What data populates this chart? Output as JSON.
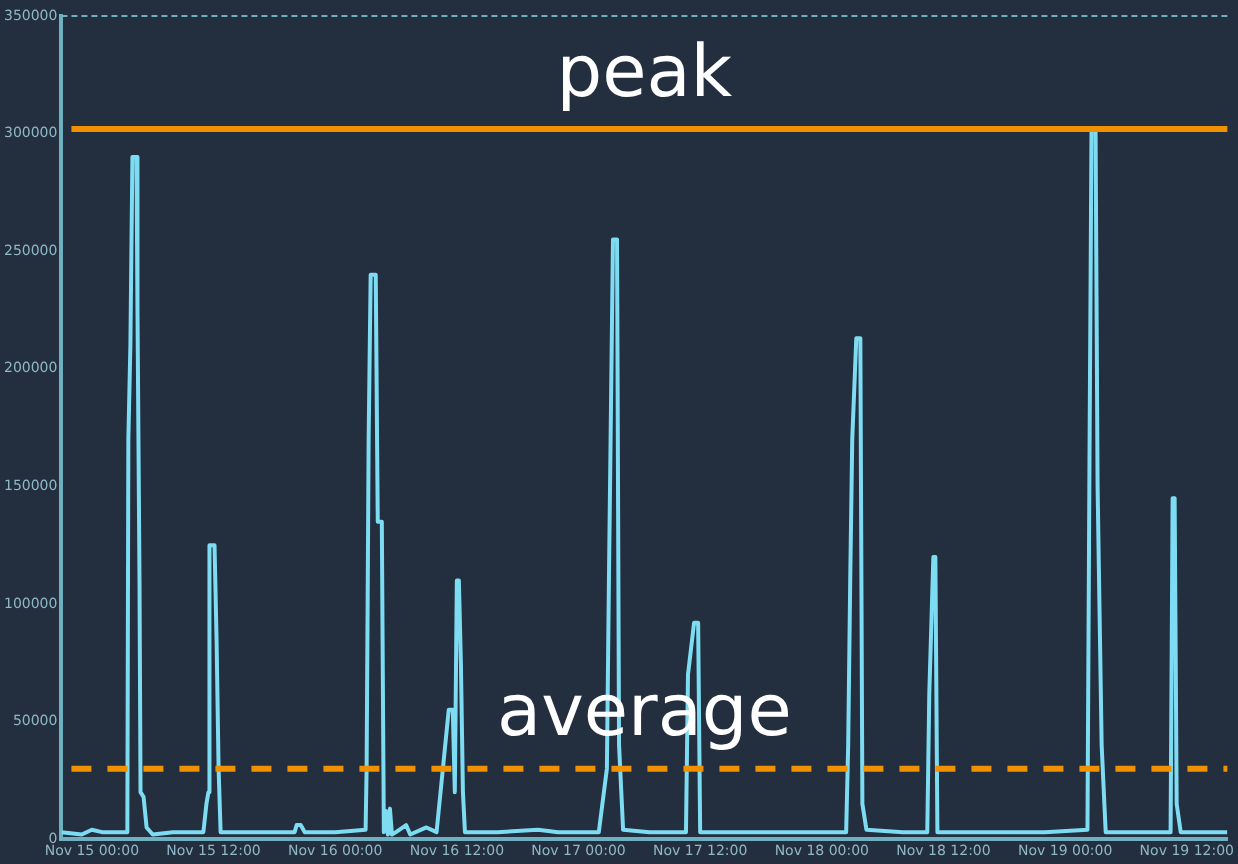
{
  "chart_data": {
    "type": "line",
    "xlim": [
      "--11-14T21:00",
      "--11-19T16:00"
    ],
    "ylim": [
      0,
      350000
    ],
    "xticks": [
      {
        "value": "--11-15T00:00",
        "label": "Nov 15 00:00"
      },
      {
        "value": "--11-15T12:00",
        "label": "Nov 15 12:00"
      },
      {
        "value": "--11-16T00:00",
        "label": "Nov 16 00:00"
      },
      {
        "value": "--11-16T12:00",
        "label": "Nov 16 12:00"
      },
      {
        "value": "--11-17T00:00",
        "label": "Nov 17 00:00"
      },
      {
        "value": "--11-17T12:00",
        "label": "Nov 17 12:00"
      },
      {
        "value": "--11-18T00:00",
        "label": "Nov 18 00:00"
      },
      {
        "value": "--11-18T12:00",
        "label": "Nov 18 12:00"
      },
      {
        "value": "--11-19T00:00",
        "label": "Nov 19 00:00"
      },
      {
        "value": "--11-19T12:00",
        "label": "Nov 19 12:00"
      }
    ],
    "yticks": [
      0,
      50000,
      100000,
      150000,
      200000,
      250000,
      300000,
      350000
    ],
    "grid": false,
    "legend": false,
    "marker": "none",
    "line_style": "solid",
    "series": [
      {
        "color": "#7ddcf2",
        "x": [
          "--11-14T21:00",
          "--11-14T23:00",
          "--11-15T00:00",
          "--11-15T01:00",
          "--11-15T02:00",
          "--11-15T03:00",
          "--11-15T03:30",
          "--11-15T03:36",
          "--11-15T03:48",
          "--11-15T04:00",
          "--11-15T04:24",
          "--11-15T04:30",
          "--11-15T04:42",
          "--11-15T04:48",
          "--11-15T05:06",
          "--11-15T05:24",
          "--11-15T06:00",
          "--11-15T08:00",
          "--11-15T10:00",
          "--11-15T11:00",
          "--11-15T11:18",
          "--11-15T11:30",
          "--11-15T11:36",
          "--11-15T12:06",
          "--11-15T12:18",
          "--11-15T12:30",
          "--11-15T12:42",
          "--11-15T15:00",
          "--11-15T18:00",
          "--11-15T20:00",
          "--11-15T20:12",
          "--11-15T20:36",
          "--11-15T21:00",
          "--11-16T00:00",
          "--11-16T03:00",
          "--11-16T03:06",
          "--11-16T03:18",
          "--11-16T03:30",
          "--11-16T04:00",
          "--11-16T04:12",
          "--11-16T04:36",
          "--11-16T04:48",
          "--11-16T05:00",
          "--11-16T05:12",
          "--11-16T05:24",
          "--11-16T05:36",
          "--11-16T06:00",
          "--11-16T07:00",
          "--11-16T07:24",
          "--11-16T09:00",
          "--11-16T10:00",
          "--11-16T11:12",
          "--11-16T11:36",
          "--11-16T11:48",
          "--11-16T12:00",
          "--11-16T12:12",
          "--11-16T12:24",
          "--11-16T12:36",
          "--11-16T12:48",
          "--11-16T16:00",
          "--11-16T20:00",
          "--11-16T22:00",
          "--11-17T02:00",
          "--11-17T02:48",
          "--11-17T03:00",
          "--11-17T03:24",
          "--11-17T03:48",
          "--11-17T04:00",
          "--11-17T04:24",
          "--11-17T07:00",
          "--11-17T10:36",
          "--11-17T10:48",
          "--11-17T11:24",
          "--11-17T11:48",
          "--11-17T12:00",
          "--11-17T16:00",
          "--11-17T22:00",
          "--11-18T02:24",
          "--11-18T02:36",
          "--11-18T02:48",
          "--11-18T03:00",
          "--11-18T03:24",
          "--11-18T03:48",
          "--11-18T04:00",
          "--11-18T04:24",
          "--11-18T08:00",
          "--11-18T10:24",
          "--11-18T10:36",
          "--11-18T11:00",
          "--11-18T11:12",
          "--11-18T11:24",
          "--11-18T16:00",
          "--11-18T22:00",
          "--11-19T02:12",
          "--11-19T02:24",
          "--11-19T02:36",
          "--11-19T03:00",
          "--11-19T03:12",
          "--11-19T03:36",
          "--11-19T04:00",
          "--11-19T08:00",
          "--11-19T10:24",
          "--11-19T10:36",
          "--11-19T10:48",
          "--11-19T11:00",
          "--11-19T11:24",
          "--11-19T14:00",
          "--11-19T16:00"
        ],
        "values": [
          3000,
          2000,
          4000,
          3000,
          3000,
          3000,
          3000,
          170000,
          210000,
          290000,
          290000,
          225000,
          110000,
          20000,
          18000,
          5000,
          2000,
          3000,
          3000,
          3000,
          15000,
          20000,
          125000,
          125000,
          85000,
          30000,
          3000,
          3000,
          3000,
          3000,
          6000,
          6000,
          3000,
          3000,
          4000,
          30000,
          170000,
          240000,
          240000,
          135000,
          135000,
          3000,
          12000,
          2000,
          13000,
          2000,
          3000,
          6000,
          2000,
          5000,
          3000,
          55000,
          55000,
          20000,
          110000,
          110000,
          75000,
          20000,
          3000,
          3000,
          4000,
          3000,
          3000,
          30000,
          110000,
          255000,
          255000,
          40000,
          4000,
          3000,
          3000,
          70000,
          92000,
          92000,
          3000,
          3000,
          3000,
          3000,
          40000,
          110000,
          170000,
          213000,
          213000,
          15000,
          4000,
          3000,
          3000,
          62000,
          120000,
          120000,
          3000,
          3000,
          3000,
          4000,
          160000,
          302000,
          302000,
          150000,
          40000,
          3000,
          3000,
          3000,
          145000,
          145000,
          15000,
          3000,
          3000,
          3000
        ]
      }
    ],
    "ref_lines": [
      {
        "axis": "y",
        "value": 302000,
        "label": "peak",
        "color": "#f29100",
        "line_style": "solid"
      },
      {
        "axis": "y",
        "value": 30000,
        "label": "average",
        "color": "#f29100",
        "line_style": "dashed"
      }
    ]
  }
}
